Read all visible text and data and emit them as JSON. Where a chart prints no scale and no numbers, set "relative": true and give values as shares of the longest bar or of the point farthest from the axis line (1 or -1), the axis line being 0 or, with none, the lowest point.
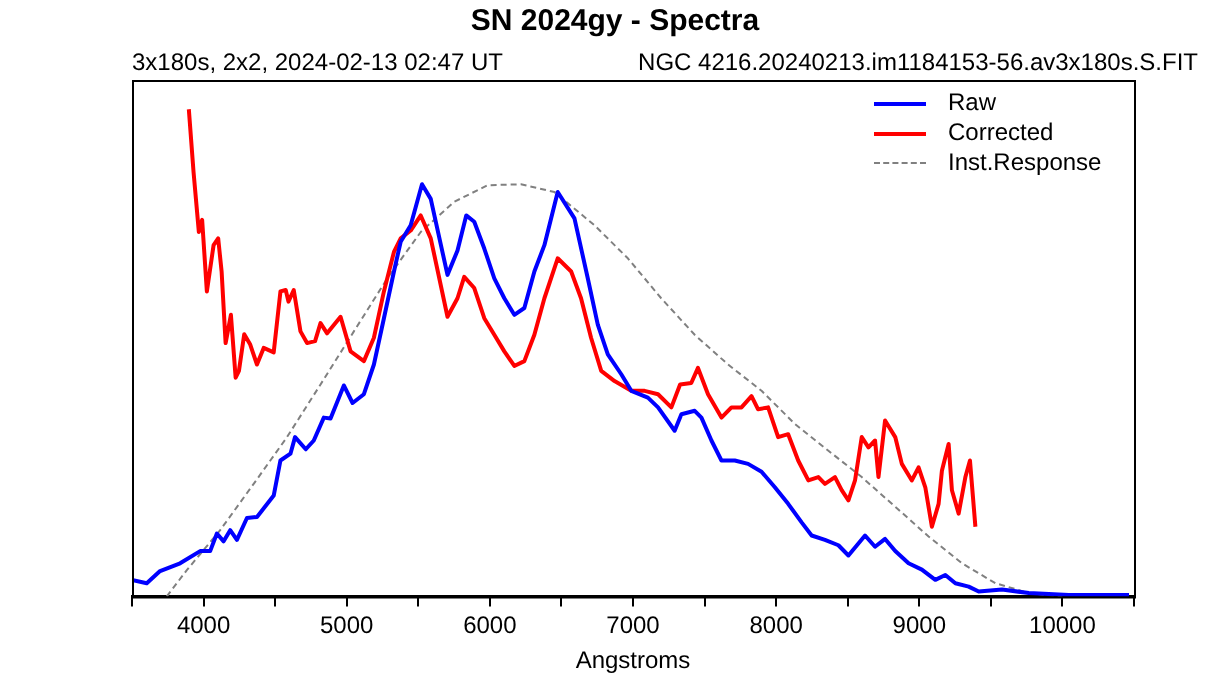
{
  "chart_data": {
    "type": "line",
    "title": "SN 2024gy - Spectra",
    "subtitle": "3x180s, 2x2, 2024-02-13 02:47 UT",
    "annotations": [
      "NGC 4216.20240213.im1184153-56.av3x180s.S.FIT"
    ],
    "xlabel": "Angstroms",
    "relative": true,
    "xlim": [
      3500,
      10500
    ],
    "xticks": [
      {
        "value": 3500,
        "label": null
      },
      4000,
      {
        "value": 4500,
        "label": null
      },
      5000,
      {
        "value": 5500,
        "label": null
      },
      6000,
      {
        "value": 6500,
        "label": null
      },
      7000,
      {
        "value": 7500,
        "label": null
      },
      8000,
      {
        "value": 8500,
        "label": null
      },
      9000,
      {
        "value": 9500,
        "label": null
      },
      10000,
      {
        "value": 10500,
        "label": null
      }
    ],
    "grid": false,
    "legend": "top right",
    "marker": "none",
    "tick_labels": "x",
    "series": [
      {
        "name": "Raw",
        "color": "#0000ff",
        "line_style": "solid",
        "x": [
          3500,
          3603,
          3696,
          3836,
          3976,
          4046,
          4093,
          4140,
          4186,
          4233,
          4303,
          4373,
          4490,
          4537,
          4607,
          4639,
          4714,
          4770,
          4840,
          4887,
          4980,
          5041,
          5120,
          5190,
          5260,
          5330,
          5377,
          5447,
          5526,
          5587,
          5704,
          5774,
          5835,
          5891,
          5961,
          6031,
          6101,
          6171,
          6241,
          6311,
          6381,
          6474,
          6591,
          6684,
          6754,
          6824,
          6918,
          6988,
          7104,
          7175,
          7291,
          7338,
          7431,
          7478,
          7548,
          7618,
          7711,
          7804,
          7898,
          7991,
          8084,
          8178,
          8248,
          8341,
          8435,
          8505,
          8621,
          8691,
          8761,
          8832,
          8925,
          9018,
          9112,
          9182,
          9252,
          9345,
          9415,
          9578,
          9765,
          10045,
          10465
        ],
        "values": [
          0.034,
          0.027,
          0.052,
          0.068,
          0.093,
          0.093,
          0.129,
          0.113,
          0.136,
          0.116,
          0.161,
          0.163,
          0.207,
          0.279,
          0.293,
          0.327,
          0.302,
          0.32,
          0.367,
          0.365,
          0.433,
          0.397,
          0.415,
          0.476,
          0.571,
          0.667,
          0.728,
          0.762,
          0.846,
          0.816,
          0.66,
          0.71,
          0.782,
          0.769,
          0.714,
          0.653,
          0.612,
          0.578,
          0.592,
          0.667,
          0.721,
          0.83,
          0.776,
          0.653,
          0.558,
          0.497,
          0.456,
          0.422,
          0.408,
          0.388,
          0.34,
          0.374,
          0.381,
          0.367,
          0.32,
          0.279,
          0.279,
          0.272,
          0.256,
          0.224,
          0.19,
          0.152,
          0.125,
          0.116,
          0.105,
          0.084,
          0.125,
          0.102,
          0.118,
          0.093,
          0.068,
          0.055,
          0.034,
          0.044,
          0.027,
          0.02,
          0.01,
          0.014,
          0.007,
          0.003,
          0.003
        ]
      },
      {
        "name": "Corrected",
        "color": "#ff0000",
        "line_style": "solid",
        "x": [
          3897,
          3930,
          3967,
          3990,
          4023,
          4070,
          4102,
          4126,
          4154,
          4191,
          4224,
          4247,
          4284,
          4326,
          4373,
          4420,
          4490,
          4537,
          4574,
          4593,
          4630,
          4677,
          4723,
          4779,
          4817,
          4863,
          4957,
          5027,
          5120,
          5190,
          5260,
          5330,
          5377,
          5447,
          5517,
          5587,
          5704,
          5774,
          5821,
          5891,
          5961,
          6031,
          6101,
          6171,
          6241,
          6311,
          6381,
          6474,
          6568,
          6637,
          6707,
          6778,
          6871,
          6988,
          7081,
          7175,
          7268,
          7329,
          7407,
          7454,
          7524,
          7618,
          7688,
          7758,
          7828,
          7874,
          7944,
          8014,
          8084,
          8154,
          8225,
          8295,
          8341,
          8411,
          8458,
          8505,
          8551,
          8598,
          8645,
          8691,
          8715,
          8761,
          8832,
          8878,
          8948,
          8995,
          9042,
          9088,
          9135,
          9158,
          9205,
          9228,
          9275,
          9322,
          9354,
          9392
        ],
        "values": [
          1,
          0.871,
          0.748,
          0.773,
          0.626,
          0.721,
          0.735,
          0.667,
          0.52,
          0.578,
          0.449,
          0.463,
          0.538,
          0.517,
          0.476,
          0.51,
          0.501,
          0.626,
          0.629,
          0.605,
          0.629,
          0.544,
          0.52,
          0.524,
          0.561,
          0.54,
          0.574,
          0.503,
          0.483,
          0.531,
          0.626,
          0.707,
          0.735,
          0.751,
          0.782,
          0.735,
          0.574,
          0.612,
          0.656,
          0.633,
          0.571,
          0.537,
          0.503,
          0.473,
          0.483,
          0.537,
          0.612,
          0.694,
          0.667,
          0.612,
          0.531,
          0.463,
          0.442,
          0.422,
          0.422,
          0.415,
          0.388,
          0.435,
          0.438,
          0.469,
          0.415,
          0.367,
          0.388,
          0.388,
          0.411,
          0.384,
          0.388,
          0.327,
          0.333,
          0.279,
          0.238,
          0.245,
          0.231,
          0.245,
          0.218,
          0.197,
          0.238,
          0.327,
          0.306,
          0.32,
          0.245,
          0.361,
          0.327,
          0.272,
          0.238,
          0.265,
          0.224,
          0.143,
          0.19,
          0.258,
          0.313,
          0.218,
          0.17,
          0.245,
          0.279,
          0.143
        ]
      },
      {
        "name": "Inst.Response",
        "color": "#808080",
        "line_style": "dashed",
        "x": [
          3743,
          3883,
          4116,
          4350,
          4583,
          4817,
          5050,
          5284,
          5517,
          5751,
          5984,
          6217,
          6451,
          6730,
          6964,
          7197,
          7431,
          7664,
          7898,
          8131,
          8365,
          8598,
          8832,
          9065,
          9298,
          9532,
          9765,
          9999
        ],
        "values": [
          0,
          0.054,
          0.136,
          0.231,
          0.327,
          0.435,
          0.544,
          0.653,
          0.748,
          0.81,
          0.844,
          0.846,
          0.83,
          0.762,
          0.694,
          0.612,
          0.537,
          0.476,
          0.422,
          0.354,
          0.299,
          0.245,
          0.184,
          0.123,
          0.068,
          0.027,
          0.007,
          0
        ]
      }
    ]
  }
}
